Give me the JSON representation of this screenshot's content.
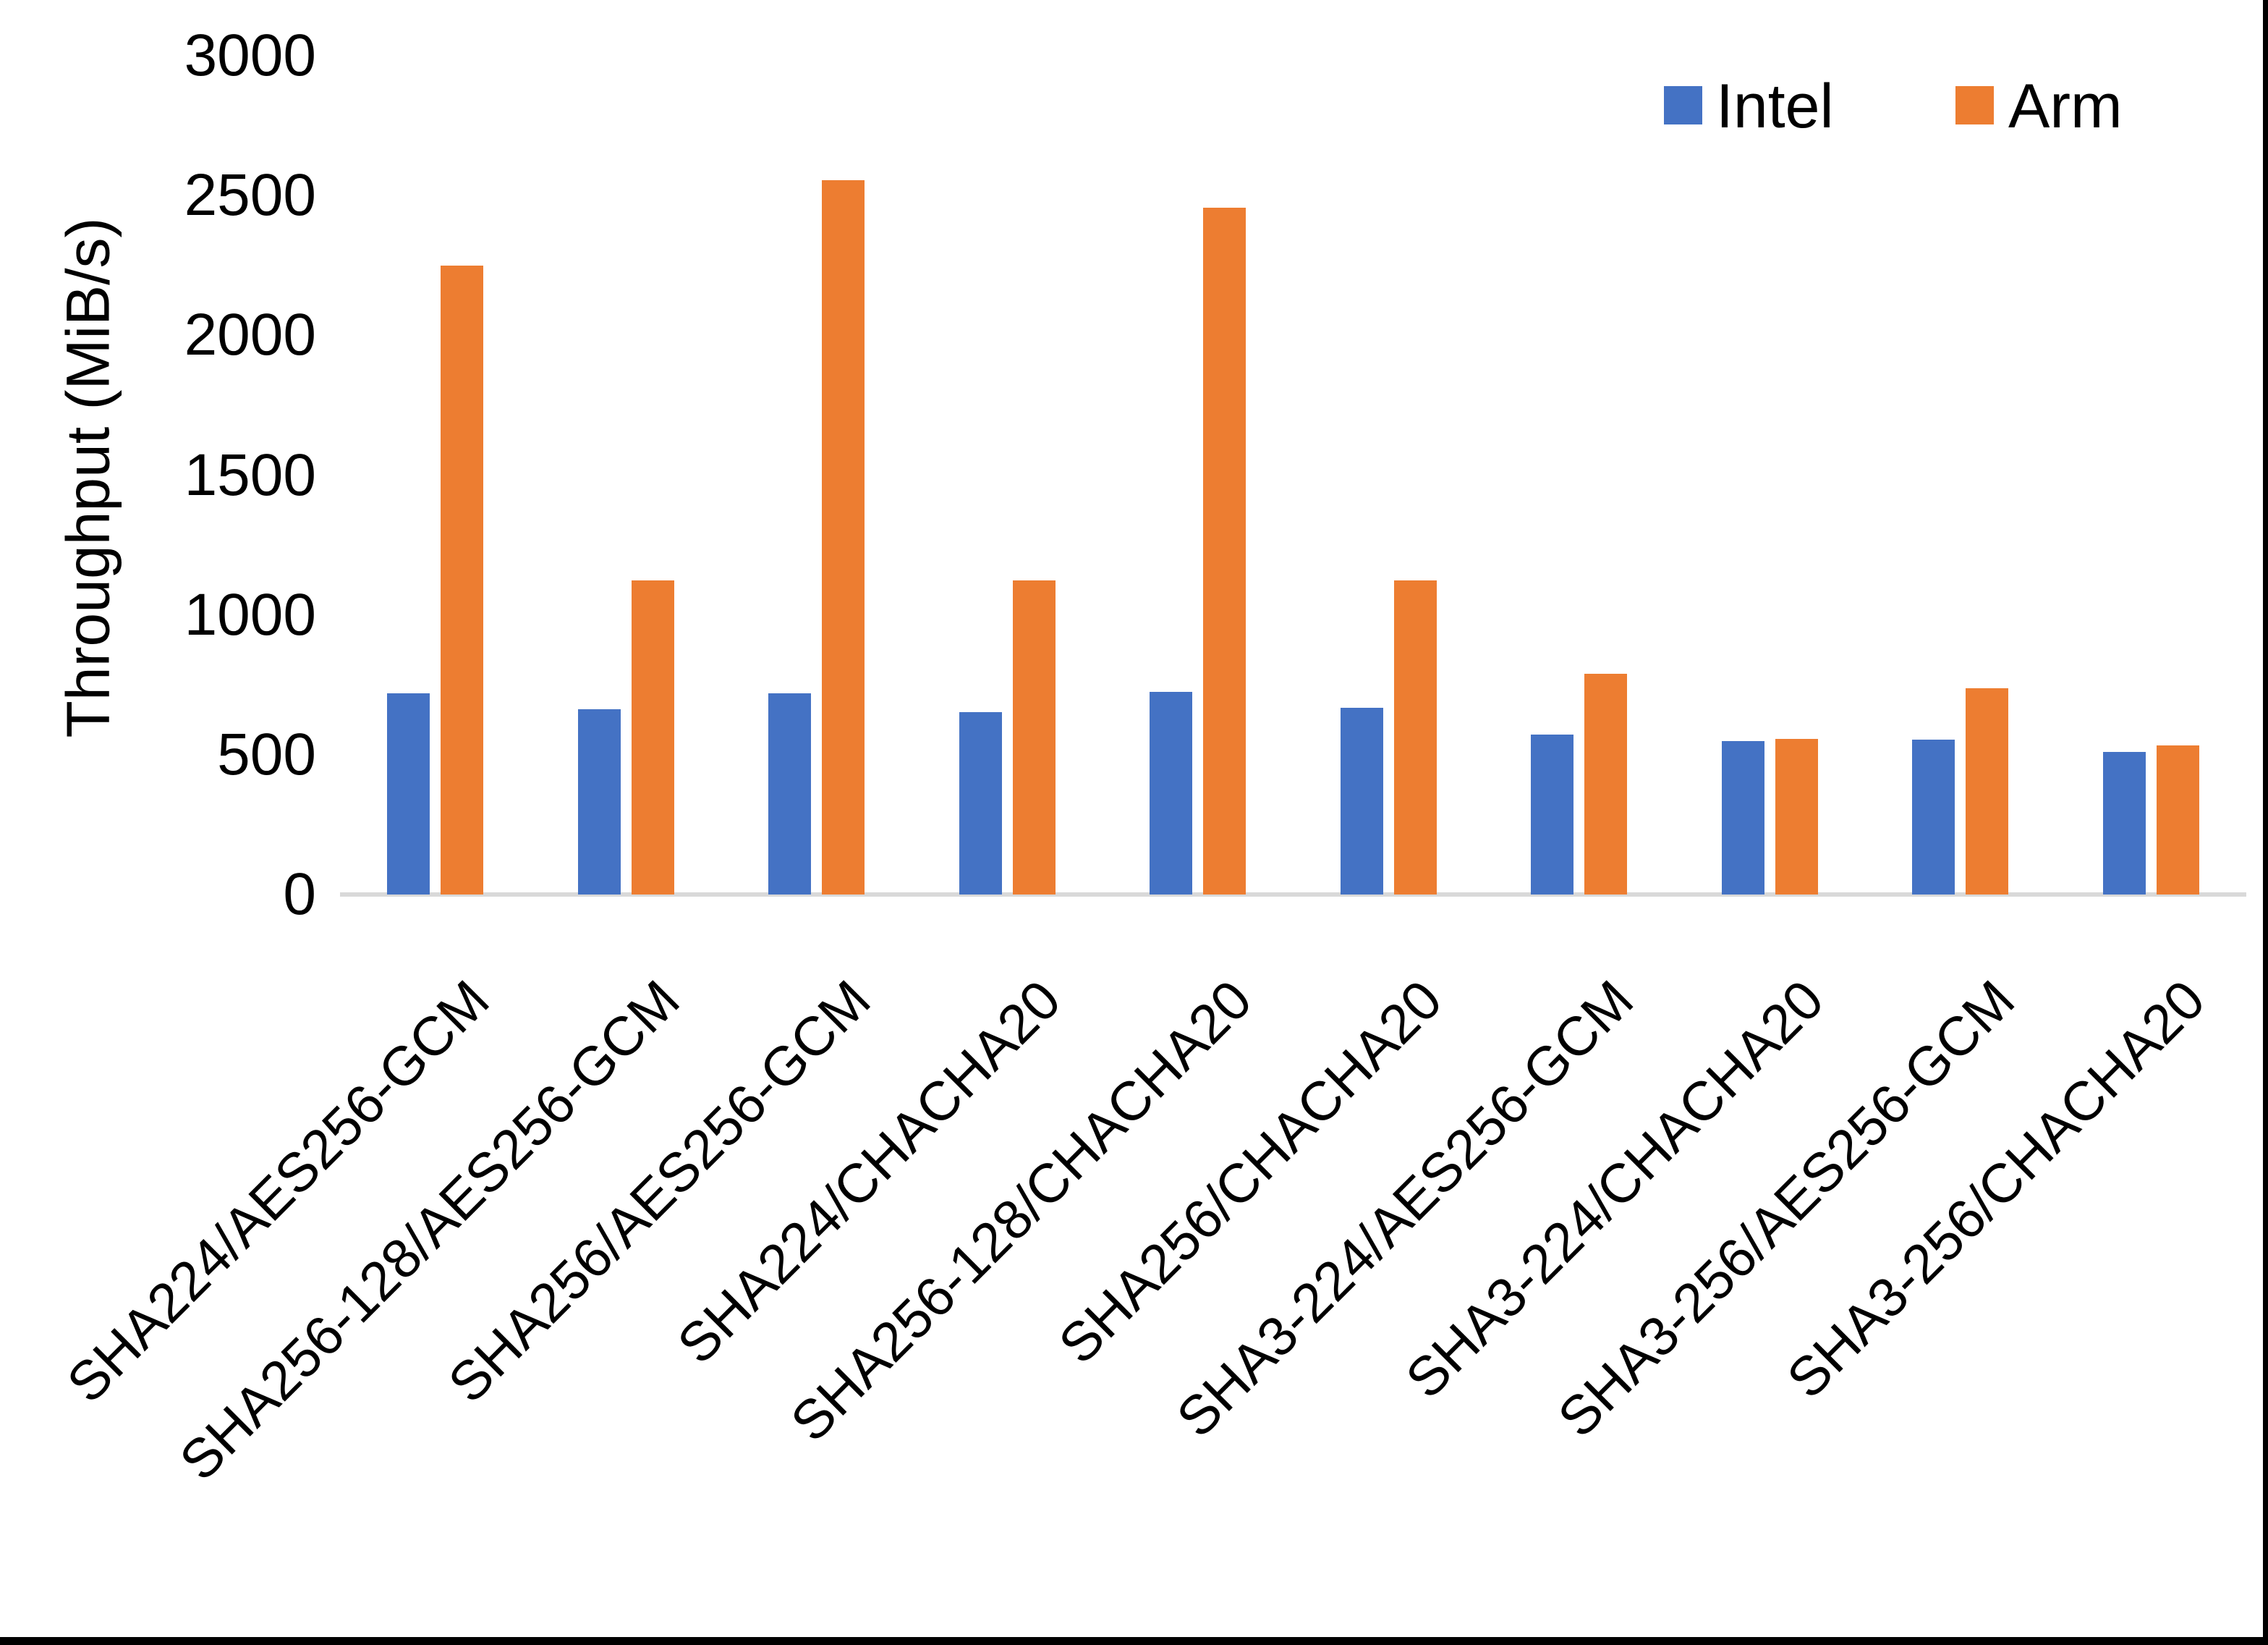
{
  "chart_data": {
    "type": "bar",
    "title": "",
    "xlabel": "",
    "ylabel": "Throughput (MiB/s)",
    "ylim": [
      0,
      3000
    ],
    "yticks": [
      0,
      500,
      1000,
      1500,
      2000,
      2500,
      3000
    ],
    "grid": false,
    "legend_position": "top-right",
    "categories": [
      "SHA224/AES256-GCM",
      "SHA256-128/AES256-GCM",
      "SHA256/AES256-GCM",
      "SHA224/CHACHA20",
      "SHA256-128/CHACHA20",
      "SHA256/CHACHA20",
      "SHA3-224/AES256-GCM",
      "SHA3-224/CHACHA20",
      "SHA3-256/AES256-GCM",
      "SHA3-256/CHACHA20"
    ],
    "series": [
      {
        "name": "Intel",
        "color": "#4472C4",
        "values": [
          720,
          663,
          720,
          653,
          724,
          668,
          572,
          550,
          554,
          510
        ]
      },
      {
        "name": "Arm",
        "color": "#ED7D31",
        "values": [
          2250,
          1124,
          2556,
          1124,
          2456,
          1124,
          790,
          557,
          738,
          533
        ]
      }
    ],
    "axis_line_color": "#D9D9D9"
  }
}
